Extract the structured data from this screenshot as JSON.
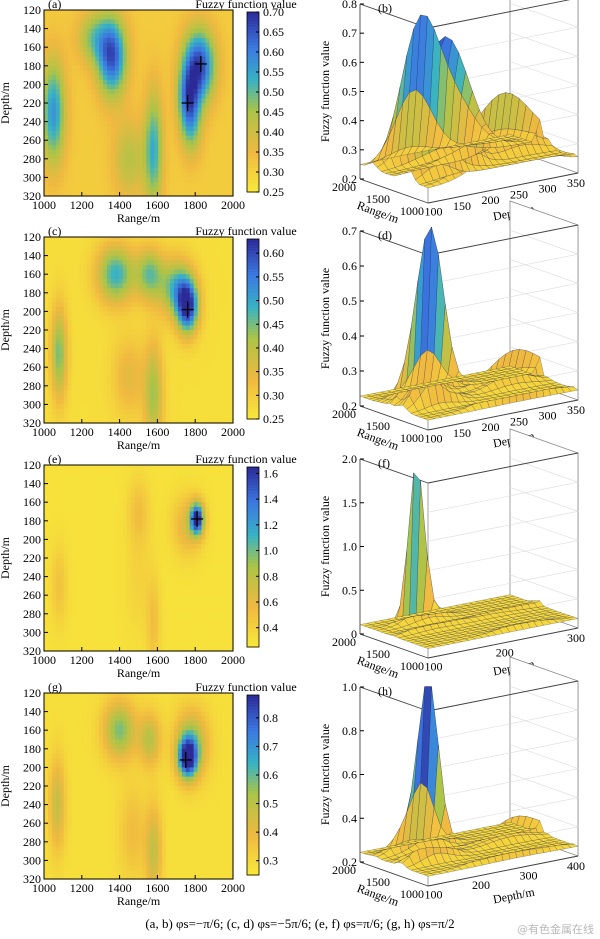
{
  "caption": "(a, b) φs=−π/6; (c, d) φs=−5π/6; (e, f) φs=π/6; (g, h) φs=π/2",
  "watermark": "@有色金属在线",
  "colors": {
    "yellow": "#f6e43a",
    "orange": "#f2b843",
    "teal": "#36b3c4",
    "blue": "#3f60d9",
    "navy": "#2c2a8f"
  },
  "chart_data": [
    {
      "type": "heatmap",
      "panel": "(a)",
      "colorbar_label": "Fuzzy function value",
      "xlabel": "Range/m",
      "ylabel": "Depth/m",
      "xlim": [
        1000,
        2000
      ],
      "ylim": [
        120,
        320
      ],
      "y_inverted": true,
      "xticks": [
        "1000",
        "1200",
        "1400",
        "1600",
        "1800",
        "2000"
      ],
      "yticks": [
        "120",
        "140",
        "160",
        "180",
        "200",
        "220",
        "240",
        "260",
        "280",
        "300",
        "320"
      ],
      "colorbar_ticks": [
        "0.70",
        "0.65",
        "0.60",
        "0.55",
        "0.50",
        "0.45",
        "0.40",
        "0.35",
        "0.30",
        "0.25"
      ],
      "vrange": [
        0.25,
        0.7
      ],
      "base": 0.31,
      "blobs": [
        {
          "x": 1820,
          "y": 180,
          "a": 0.36,
          "sx": 60,
          "sy": 28
        },
        {
          "x": 1760,
          "y": 215,
          "a": 0.22,
          "sx": 40,
          "sy": 25
        },
        {
          "x": 1780,
          "y": 245,
          "a": 0.15,
          "sx": 40,
          "sy": 25
        },
        {
          "x": 1360,
          "y": 170,
          "a": 0.34,
          "sx": 55,
          "sy": 30
        },
        {
          "x": 1260,
          "y": 150,
          "a": 0.15,
          "sx": 60,
          "sy": 20
        },
        {
          "x": 1050,
          "y": 230,
          "a": 0.26,
          "sx": 45,
          "sy": 40
        },
        {
          "x": 1580,
          "y": 270,
          "a": 0.22,
          "sx": 35,
          "sy": 45
        },
        {
          "x": 1450,
          "y": 280,
          "a": 0.12,
          "sx": 60,
          "sy": 30
        }
      ],
      "markers": [
        {
          "x": 1830,
          "y": 178
        },
        {
          "x": 1760,
          "y": 220
        }
      ]
    },
    {
      "type": "surface3d",
      "panel": "(b)",
      "zlabel": "Fuzzy function value",
      "xlabel": "Range/m",
      "ylabel": "Depth/m",
      "zticks": [
        "0.2",
        "0.3",
        "0.4",
        "0.5",
        "0.6",
        "0.7",
        "0.8"
      ],
      "xticks": [
        "1000",
        "1500",
        "2000"
      ],
      "yticks": [
        "100",
        "150",
        "200",
        "250",
        "300",
        "350"
      ],
      "zlim": [
        0.2,
        0.8
      ],
      "peak": 0.72
    },
    {
      "type": "heatmap",
      "panel": "(c)",
      "colorbar_label": "Fuzzy function value",
      "xlabel": "Range/m",
      "ylabel": "Depth/m",
      "xlim": [
        1000,
        2000
      ],
      "ylim": [
        120,
        320
      ],
      "y_inverted": true,
      "xticks": [
        "1000",
        "1200",
        "1400",
        "1600",
        "1800",
        "2000"
      ],
      "yticks": [
        "120",
        "140",
        "160",
        "180",
        "200",
        "220",
        "240",
        "260",
        "280",
        "300",
        "320"
      ],
      "colorbar_ticks": [
        "0.60",
        "0.55",
        "0.50",
        "0.45",
        "0.40",
        "0.35",
        "0.30",
        "0.25"
      ],
      "vrange": [
        0.25,
        0.63
      ],
      "base": 0.27,
      "blobs": [
        {
          "x": 1760,
          "y": 195,
          "a": 0.34,
          "sx": 40,
          "sy": 20
        },
        {
          "x": 1700,
          "y": 175,
          "a": 0.2,
          "sx": 60,
          "sy": 22
        },
        {
          "x": 1380,
          "y": 160,
          "a": 0.22,
          "sx": 70,
          "sy": 22
        },
        {
          "x": 1560,
          "y": 160,
          "a": 0.18,
          "sx": 50,
          "sy": 20
        },
        {
          "x": 1080,
          "y": 245,
          "a": 0.18,
          "sx": 30,
          "sy": 35
        },
        {
          "x": 1580,
          "y": 290,
          "a": 0.15,
          "sx": 35,
          "sy": 40
        },
        {
          "x": 1450,
          "y": 270,
          "a": 0.08,
          "sx": 60,
          "sy": 30
        }
      ],
      "markers": [
        {
          "x": 1760,
          "y": 198
        }
      ]
    },
    {
      "type": "surface3d",
      "panel": "(d)",
      "zlabel": "Fuzzy function value",
      "xlabel": "Range/m",
      "ylabel": "Depth/m",
      "zticks": [
        "0.2",
        "0.3",
        "0.4",
        "0.5",
        "0.6",
        "0.7"
      ],
      "xticks": [
        "1000",
        "1500",
        "2000"
      ],
      "yticks": [
        "100",
        "150",
        "200",
        "250",
        "300",
        "350"
      ],
      "zlim": [
        0.2,
        0.7
      ],
      "peak": 0.58
    },
    {
      "type": "heatmap",
      "panel": "(e)",
      "colorbar_label": "Fuzzy function value",
      "xlabel": "Range/m",
      "ylabel": "Depth/m",
      "xlim": [
        1000,
        2000
      ],
      "ylim": [
        120,
        320
      ],
      "y_inverted": true,
      "xticks": [
        "1000",
        "1200",
        "1400",
        "1600",
        "1800",
        "2000"
      ],
      "yticks": [
        "120",
        "140",
        "160",
        "180",
        "200",
        "220",
        "240",
        "260",
        "280",
        "300",
        "320"
      ],
      "colorbar_ticks": [
        "1.6",
        "1.4",
        "1.2",
        "1.0",
        "0.8",
        "0.6",
        "0.4"
      ],
      "vrange": [
        0.25,
        1.65
      ],
      "base": 0.3,
      "blobs": [
        {
          "x": 1810,
          "y": 178,
          "a": 1.3,
          "sx": 25,
          "sy": 12
        },
        {
          "x": 1760,
          "y": 185,
          "a": 0.35,
          "sx": 55,
          "sy": 22
        },
        {
          "x": 1500,
          "y": 170,
          "a": 0.22,
          "sx": 40,
          "sy": 25
        },
        {
          "x": 1080,
          "y": 250,
          "a": 0.2,
          "sx": 30,
          "sy": 30
        },
        {
          "x": 1580,
          "y": 290,
          "a": 0.22,
          "sx": 25,
          "sy": 35
        },
        {
          "x": 1500,
          "y": 245,
          "a": 0.1,
          "sx": 50,
          "sy": 40
        }
      ],
      "markers": [
        {
          "x": 1810,
          "y": 178
        }
      ]
    },
    {
      "type": "surface3d",
      "panel": "(f)",
      "zlabel": "Fuzzy function value",
      "xlabel": "Range/m",
      "ylabel": "Depth/m",
      "zticks": [
        "0",
        "0.5",
        "1.0",
        "1.5",
        "2.0"
      ],
      "xticks": [
        "1000",
        "1500",
        "2000"
      ],
      "yticks": [
        "100",
        "200",
        "300"
      ],
      "zlim": [
        0,
        2.0
      ],
      "peak": 1.62
    },
    {
      "type": "heatmap",
      "panel": "(g)",
      "colorbar_label": "Fuzzy function value",
      "xlabel": "Range/m",
      "ylabel": "Depth/m",
      "xlim": [
        1000,
        2000
      ],
      "ylim": [
        120,
        320
      ],
      "y_inverted": true,
      "xticks": [
        "1000",
        "1200",
        "1400",
        "1600",
        "1800",
        "2000"
      ],
      "yticks": [
        "120",
        "140",
        "160",
        "180",
        "200",
        "220",
        "240",
        "260",
        "280",
        "300",
        "320"
      ],
      "colorbar_ticks": [
        "0.8",
        "0.7",
        "0.6",
        "0.5",
        "0.4",
        "0.3"
      ],
      "vrange": [
        0.25,
        0.88
      ],
      "base": 0.28,
      "blobs": [
        {
          "x": 1760,
          "y": 190,
          "a": 0.55,
          "sx": 35,
          "sy": 15
        },
        {
          "x": 1780,
          "y": 175,
          "a": 0.28,
          "sx": 60,
          "sy": 25
        },
        {
          "x": 1400,
          "y": 160,
          "a": 0.3,
          "sx": 60,
          "sy": 22
        },
        {
          "x": 1560,
          "y": 170,
          "a": 0.22,
          "sx": 40,
          "sy": 20
        },
        {
          "x": 1070,
          "y": 240,
          "a": 0.2,
          "sx": 30,
          "sy": 35
        },
        {
          "x": 1580,
          "y": 290,
          "a": 0.2,
          "sx": 30,
          "sy": 35
        },
        {
          "x": 1470,
          "y": 270,
          "a": 0.1,
          "sx": 50,
          "sy": 35
        }
      ],
      "markers": [
        {
          "x": 1750,
          "y": 192
        }
      ]
    },
    {
      "type": "surface3d",
      "panel": "(h)",
      "zlabel": "Fuzzy function value",
      "xlabel": "Range/m",
      "ylabel": "Depth/m",
      "zticks": [
        "0.2",
        "0.4",
        "0.6",
        "0.8",
        "1.0"
      ],
      "xticks": [
        "1000",
        "1500",
        "2000"
      ],
      "yticks": [
        "100",
        "200",
        "300",
        "400"
      ],
      "zlim": [
        0.2,
        1.0
      ],
      "peak": 0.8
    }
  ]
}
